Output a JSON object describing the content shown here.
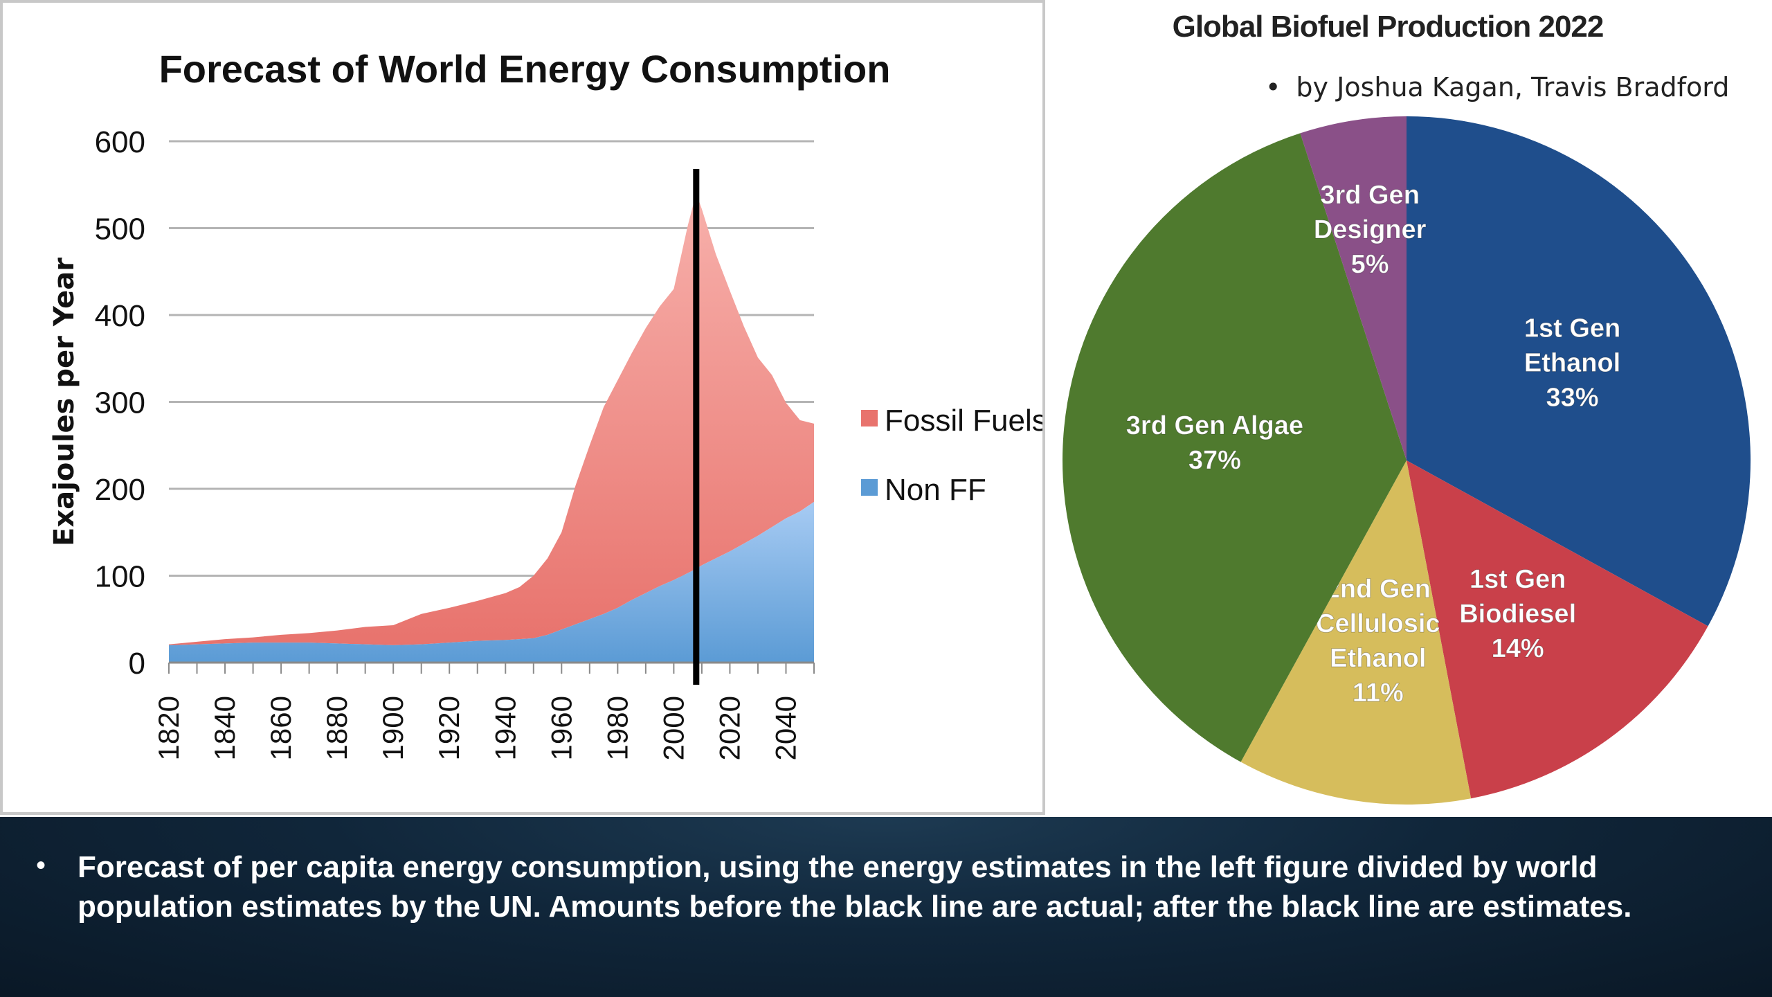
{
  "chart_data": [
    {
      "type": "area",
      "title": "Forecast of World Energy Consumption",
      "ylabel": "Exajoules per Year",
      "xlabel": "",
      "xlim": [
        1820,
        2050
      ],
      "ylim": [
        0,
        600
      ],
      "yticks": [
        0,
        100,
        200,
        300,
        400,
        500,
        600
      ],
      "xticks": [
        1820,
        1840,
        1860,
        1880,
        1900,
        1920,
        1940,
        1960,
        1980,
        2000,
        2020,
        2040
      ],
      "stacked": true,
      "grid": true,
      "legend_position": "right",
      "x": [
        1820,
        1830,
        1840,
        1850,
        1860,
        1870,
        1880,
        1890,
        1900,
        1910,
        1920,
        1930,
        1940,
        1945,
        1950,
        1955,
        1960,
        1965,
        1970,
        1975,
        1980,
        1985,
        1990,
        1995,
        2000,
        2005,
        2008,
        2010,
        2015,
        2020,
        2025,
        2030,
        2035,
        2040,
        2045,
        2050
      ],
      "series": [
        {
          "name": "Non FF",
          "color": "#5b9bd5",
          "values": [
            20,
            21,
            22,
            23,
            23,
            23,
            22,
            21,
            20,
            21,
            23,
            25,
            26,
            27,
            28,
            32,
            38,
            44,
            50,
            56,
            63,
            72,
            80,
            88,
            95,
            103,
            108,
            112,
            120,
            128,
            137,
            146,
            156,
            166,
            174,
            185
          ]
        },
        {
          "name": "Fossil Fuels",
          "color": "#e8736d",
          "values": [
            1,
            3,
            5,
            6,
            9,
            11,
            15,
            20,
            23,
            35,
            40,
            46,
            54,
            60,
            72,
            88,
            112,
            160,
            200,
            238,
            262,
            284,
            305,
            322,
            335,
            400,
            432,
            410,
            350,
            300,
            250,
            205,
            175,
            133,
            105,
            90
          ]
        }
      ],
      "annotations": [
        {
          "type": "vertical-line",
          "x": 2008,
          "color": "#000000"
        }
      ]
    },
    {
      "type": "pie",
      "title": "Global Biofuel Production 2022",
      "subtitle": "by Joshua Kagan, Travis Bradford",
      "slices": [
        {
          "label_lines": [
            "1st Gen",
            "Ethanol",
            "33%"
          ],
          "value": 33,
          "color": "#1f4e8c"
        },
        {
          "label_lines": [
            "1st Gen",
            "Biodiesel",
            "14%"
          ],
          "value": 14,
          "color": "#c9404a"
        },
        {
          "label_lines": [
            "2nd Gen",
            "Cellulosic",
            "Ethanol",
            "11%"
          ],
          "value": 11,
          "color": "#d6bd5c"
        },
        {
          "label_lines": [
            "3rd Gen Algae",
            "37%"
          ],
          "value": 37,
          "color": "#4f7a2e"
        },
        {
          "label_lines": [
            "3rd Gen",
            "Designer",
            "5%"
          ],
          "value": 5,
          "color": "#8a5088"
        }
      ]
    }
  ],
  "caption": {
    "bullet": "•",
    "text": "Forecast of per capita energy consumption, using the energy estimates in the left figure divided by world population estimates by the UN. Amounts before the black line are actual; after the black line are estimates."
  },
  "pie_author_bullet": "•"
}
